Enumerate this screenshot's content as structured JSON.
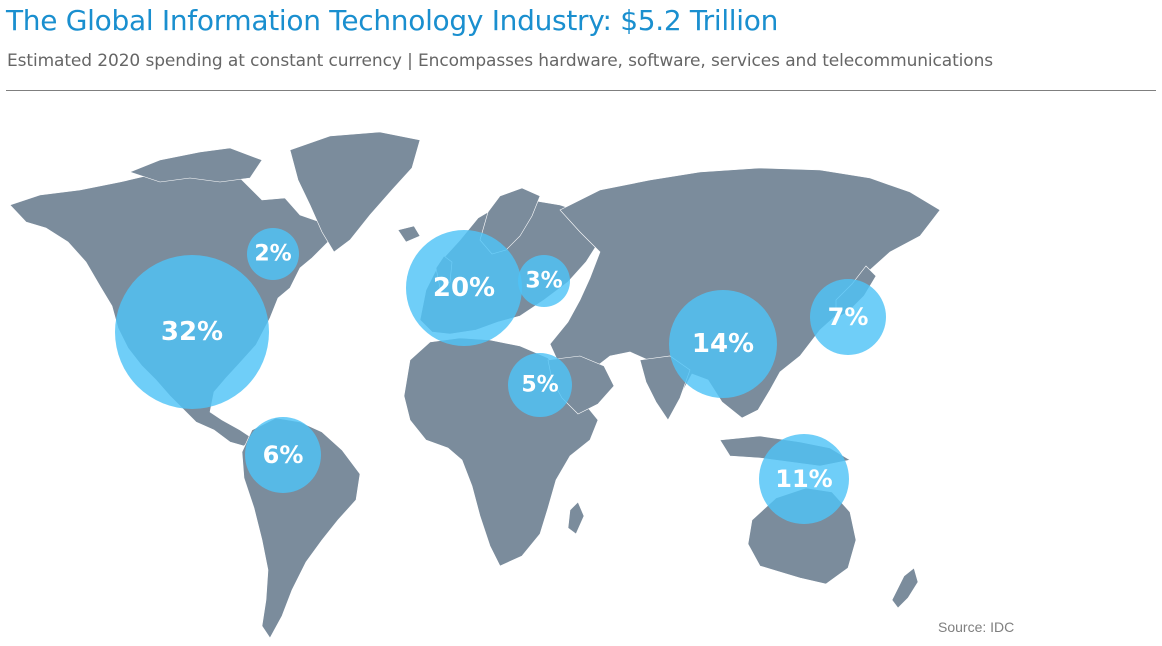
{
  "title": "The Global Information Technology Industry: $5.2 Trillion",
  "subtitle": "Estimated 2020 spending at constant currency | Encompasses hardware, software, services and telecommunications",
  "source": "Source: IDC",
  "colors": {
    "title": "#1a8fcf",
    "land": "#7b8c9c",
    "bubble": "#4fc3f7",
    "bubble_text": "#ffffff",
    "rule": "#7f7f7f"
  },
  "regions": [
    {
      "id": "canada",
      "share": 2,
      "label": "2%"
    },
    {
      "id": "united-states",
      "share": 32,
      "label": "32%"
    },
    {
      "id": "latin-america",
      "share": 6,
      "label": "6%"
    },
    {
      "id": "western-europe",
      "share": 20,
      "label": "20%"
    },
    {
      "id": "central-eastern-europe",
      "share": 3,
      "label": "3%"
    },
    {
      "id": "middle-east-africa",
      "share": 5,
      "label": "5%"
    },
    {
      "id": "china",
      "share": 14,
      "label": "14%"
    },
    {
      "id": "japan",
      "share": 7,
      "label": "7%"
    },
    {
      "id": "asia-pacific",
      "share": 11,
      "label": "11%"
    }
  ]
}
